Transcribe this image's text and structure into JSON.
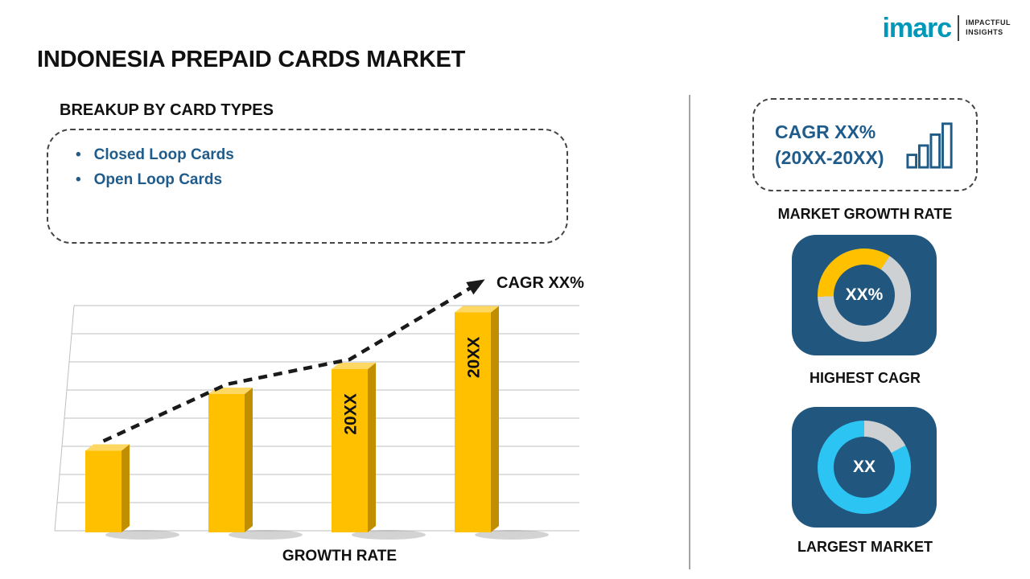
{
  "logo": {
    "brand": "imarc",
    "tagline": [
      "IMPACTFUL",
      "INSIGHTS"
    ]
  },
  "page": {
    "title": "INDONESIA PREPAID CARDS MARKET"
  },
  "breakup": {
    "heading": "BREAKUP BY CARD TYPES",
    "items": [
      "Closed Loop Cards",
      "Open Loop Cards"
    ]
  },
  "right_panel": {
    "cagr_card": {
      "line1": "CAGR XX%",
      "line2": "(20XX-20XX)"
    },
    "growth_rate_caption": "MARKET GROWTH RATE"
  },
  "colors": {
    "accent_blue": "#1F5C8B",
    "tile_blue": "#21567E",
    "bar_gold": "#FFC000",
    "cyan": "#2BC4F3",
    "logo_teal": "#0098B9",
    "track_grey": "#CDD1D4"
  },
  "chart_data": [
    {
      "id": "growth_rate_bars",
      "type": "bar",
      "title": "GROWTH RATE",
      "categories": [
        "",
        "",
        "20XX",
        "20XX"
      ],
      "values": [
        36,
        61,
        72,
        97
      ],
      "ylim": [
        0,
        100
      ],
      "value_axis_visible": false,
      "gridlines": 9,
      "bar_color": "#FFC000",
      "bar_side_color": "#C18E00",
      "bar_top_color": "#FFD863",
      "trend": {
        "label": "CAGR XX%",
        "style": "dashed-arrow",
        "color": "#1A1A1A"
      }
    },
    {
      "id": "highest_cagr_donut",
      "type": "donut",
      "center_label": "XX%",
      "caption": "HIGHEST CAGR",
      "arc_color": "#FFC000",
      "track_color": "#CDD1D4",
      "arc_start_deg": 268,
      "arc_sweep_deg": 125
    },
    {
      "id": "largest_market_donut",
      "type": "donut",
      "center_label": "XX",
      "caption": "LARGEST MARKET",
      "arc_color": "#2BC4F3",
      "track_color": "#CDD1D4",
      "arc_start_deg": 62,
      "arc_sweep_deg": 298
    }
  ]
}
